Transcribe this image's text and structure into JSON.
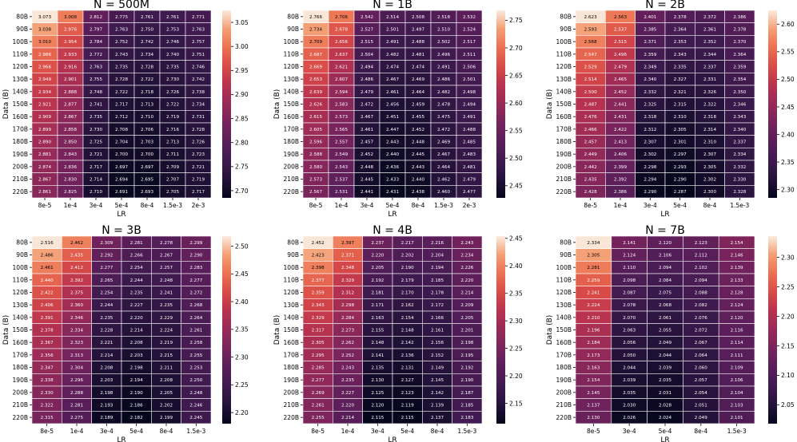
{
  "chart_data": [
    {
      "type": "heatmap",
      "title": "N = 500M",
      "xlabel": "LR",
      "ylabel": "Data (B)",
      "x_categories": [
        "8e-5",
        "1e-4",
        "3e-4",
        "5e-4",
        "8e-4",
        "1.5e-3",
        "2e-3"
      ],
      "y_categories": [
        "80B",
        "90B",
        "100B",
        "110B",
        "120B",
        "130B",
        "140B",
        "150B",
        "160B",
        "170B",
        "180B",
        "190B",
        "200B",
        "210B",
        "220B"
      ],
      "values": [
        [
          3.073,
          3.008,
          2.812,
          2.775,
          2.761,
          2.761,
          2.771
        ],
        [
          3.038,
          2.976,
          2.797,
          2.763,
          2.75,
          2.753,
          2.763
        ],
        [
          3.01,
          2.954,
          2.784,
          2.752,
          2.742,
          2.746,
          2.757
        ],
        [
          2.986,
          2.933,
          2.772,
          2.743,
          2.734,
          2.74,
          2.751
        ],
        [
          2.966,
          2.916,
          2.763,
          2.735,
          2.728,
          2.735,
          2.746
        ],
        [
          2.949,
          2.901,
          2.755,
          2.728,
          2.722,
          2.73,
          2.742
        ],
        [
          2.934,
          2.888,
          2.748,
          2.722,
          2.718,
          2.726,
          2.738
        ],
        [
          2.921,
          2.877,
          2.741,
          2.717,
          2.713,
          2.722,
          2.734
        ],
        [
          2.909,
          2.867,
          2.735,
          2.712,
          2.71,
          2.719,
          2.731
        ],
        [
          2.899,
          2.858,
          2.73,
          2.708,
          2.706,
          2.716,
          2.728
        ],
        [
          2.89,
          2.85,
          2.725,
          2.704,
          2.703,
          2.713,
          2.726
        ],
        [
          2.881,
          2.843,
          2.721,
          2.7,
          2.7,
          2.711,
          2.723
        ],
        [
          2.874,
          2.836,
          2.717,
          2.697,
          2.697,
          2.709,
          2.721
        ],
        [
          2.867,
          2.83,
          2.714,
          2.694,
          2.695,
          2.707,
          2.719
        ],
        [
          2.861,
          2.825,
          2.71,
          2.691,
          2.693,
          2.705,
          2.717
        ]
      ],
      "colorbar": {
        "ticks": [
          "2.70",
          "2.75",
          "2.80",
          "2.85",
          "2.90",
          "2.95",
          "3.00",
          "3.05"
        ],
        "vmin": 2.685,
        "vmax": 3.075
      }
    },
    {
      "type": "heatmap",
      "title": "N = 1B",
      "xlabel": "LR",
      "ylabel": "Data (B)",
      "x_categories": [
        "8e-5",
        "1e-4",
        "3e-4",
        "5e-4",
        "8e-4",
        "1.5e-3",
        "2e-3"
      ],
      "y_categories": [
        "80B",
        "90B",
        "100B",
        "110B",
        "120B",
        "130B",
        "140B",
        "150B",
        "160B",
        "170B",
        "180B",
        "190B",
        "200B",
        "210B",
        "220B"
      ],
      "values": [
        [
          2.766,
          2.706,
          2.542,
          2.514,
          2.508,
          2.518,
          2.532
        ],
        [
          2.734,
          2.678,
          2.527,
          2.501,
          2.497,
          2.51,
          2.524
        ],
        [
          2.709,
          2.656,
          2.515,
          2.491,
          2.488,
          2.502,
          2.517
        ],
        [
          2.687,
          2.637,
          2.504,
          2.482,
          2.481,
          2.496,
          2.511
        ],
        [
          2.669,
          2.621,
          2.494,
          2.474,
          2.474,
          2.491,
          2.506
        ],
        [
          2.653,
          2.607,
          2.486,
          2.467,
          2.469,
          2.486,
          2.501
        ],
        [
          2.639,
          2.594,
          2.479,
          2.461,
          2.464,
          2.482,
          2.498
        ],
        [
          2.626,
          2.583,
          2.472,
          2.456,
          2.459,
          2.478,
          2.494
        ],
        [
          2.615,
          2.573,
          2.467,
          2.451,
          2.455,
          2.475,
          2.491
        ],
        [
          2.605,
          2.565,
          2.461,
          2.447,
          2.452,
          2.472,
          2.488
        ],
        [
          2.596,
          2.557,
          2.457,
          2.443,
          2.448,
          2.469,
          2.485
        ],
        [
          2.588,
          2.549,
          2.452,
          2.44,
          2.445,
          2.467,
          2.483
        ],
        [
          2.58,
          2.543,
          2.448,
          2.436,
          2.443,
          2.464,
          2.481
        ],
        [
          2.573,
          2.537,
          2.445,
          2.433,
          2.44,
          2.462,
          2.479
        ],
        [
          2.567,
          2.531,
          2.441,
          2.431,
          2.438,
          2.46,
          2.477
        ]
      ],
      "colorbar": {
        "ticks": [
          "2.45",
          "2.50",
          "2.55",
          "2.60",
          "2.65",
          "2.70",
          "2.75"
        ],
        "vmin": 2.428,
        "vmax": 2.768
      }
    },
    {
      "type": "heatmap",
      "title": "N = 2B",
      "xlabel": "LR",
      "ylabel": "Data (B)",
      "x_categories": [
        "8e-5",
        "1e-4",
        "3e-4",
        "5e-4",
        "8e-4",
        "1.5e-3"
      ],
      "y_categories": [
        "80B",
        "90B",
        "100B",
        "110B",
        "120B",
        "130B",
        "140B",
        "150B",
        "160B",
        "170B",
        "180B",
        "190B",
        "200B",
        "210B",
        "220B"
      ],
      "values": [
        [
          2.623,
          2.563,
          2.401,
          2.378,
          2.372,
          2.386
        ],
        [
          2.593,
          2.537,
          2.385,
          2.364,
          2.361,
          2.378
        ],
        [
          2.568,
          2.515,
          2.371,
          2.353,
          2.352,
          2.37
        ],
        [
          2.547,
          2.496,
          2.359,
          2.343,
          2.344,
          2.364
        ],
        [
          2.529,
          2.479,
          2.349,
          2.335,
          2.337,
          2.359
        ],
        [
          2.514,
          2.465,
          2.34,
          2.327,
          2.331,
          2.354
        ],
        [
          2.5,
          2.452,
          2.332,
          2.321,
          2.326,
          2.35
        ],
        [
          2.487,
          2.441,
          2.325,
          2.315,
          2.322,
          2.346
        ],
        [
          2.476,
          2.431,
          2.318,
          2.31,
          2.318,
          2.343
        ],
        [
          2.466,
          2.422,
          2.312,
          2.305,
          2.314,
          2.34
        ],
        [
          2.457,
          2.413,
          2.307,
          2.301,
          2.31,
          2.337
        ],
        [
          2.449,
          2.406,
          2.302,
          2.297,
          2.307,
          2.334
        ],
        [
          2.442,
          2.399,
          2.298,
          2.293,
          2.305,
          2.332
        ],
        [
          2.435,
          2.392,
          2.294,
          2.29,
          2.302,
          2.33
        ],
        [
          2.428,
          2.386,
          2.29,
          2.287,
          2.3,
          2.328
        ]
      ],
      "colorbar": {
        "ticks": [
          "2.30",
          "2.35",
          "2.40",
          "2.45",
          "2.50",
          "2.55",
          "2.60"
        ],
        "vmin": 2.285,
        "vmax": 2.625
      }
    },
    {
      "type": "heatmap",
      "title": "N = 3B",
      "xlabel": "LR",
      "ylabel": "Data (B)",
      "x_categories": [
        "8e-5",
        "1e-4",
        "3e-4",
        "5e-4",
        "8e-4",
        "1.5e-3"
      ],
      "y_categories": [
        "80B",
        "90B",
        "100B",
        "110B",
        "120B",
        "130B",
        "140B",
        "150B",
        "160B",
        "170B",
        "180B",
        "190B",
        "200B",
        "210B",
        "220B"
      ],
      "values": [
        [
          2.516,
          2.462,
          2.309,
          2.281,
          2.278,
          2.299
        ],
        [
          2.486,
          2.435,
          2.292,
          2.266,
          2.267,
          2.29
        ],
        [
          2.461,
          2.412,
          2.277,
          2.254,
          2.257,
          2.283
        ],
        [
          2.44,
          2.392,
          2.265,
          2.244,
          2.248,
          2.277
        ],
        [
          2.422,
          2.375,
          2.254,
          2.235,
          2.241,
          2.272
        ],
        [
          2.406,
          2.36,
          2.244,
          2.227,
          2.235,
          2.268
        ],
        [
          2.391,
          2.346,
          2.235,
          2.22,
          2.229,
          2.264
        ],
        [
          2.378,
          2.334,
          2.228,
          2.214,
          2.224,
          2.261
        ],
        [
          2.367,
          2.323,
          2.221,
          2.208,
          2.219,
          2.258
        ],
        [
          2.356,
          2.313,
          2.214,
          2.203,
          2.215,
          2.255
        ],
        [
          2.347,
          2.304,
          2.208,
          2.198,
          2.211,
          2.253
        ],
        [
          2.338,
          2.296,
          2.203,
          2.194,
          2.208,
          2.25
        ],
        [
          2.33,
          2.288,
          2.198,
          2.19,
          2.205,
          2.248
        ],
        [
          2.322,
          2.281,
          2.193,
          2.186,
          2.202,
          2.246
        ],
        [
          2.315,
          2.275,
          2.189,
          2.182,
          2.199,
          2.245
        ]
      ],
      "colorbar": {
        "ticks": [
          "2.20",
          "2.25",
          "2.30",
          "2.35",
          "2.40",
          "2.45",
          "2.50"
        ],
        "vmin": 2.18,
        "vmax": 2.518
      }
    },
    {
      "type": "heatmap",
      "title": "N = 4B",
      "xlabel": "LR",
      "ylabel": "Data (B)",
      "x_categories": [
        "8e-5",
        "1e-4",
        "3e-4",
        "5e-4",
        "8e-4",
        "1.5e-3"
      ],
      "y_categories": [
        "80B",
        "90B",
        "100B",
        "110B",
        "120B",
        "130B",
        "140B",
        "150B",
        "160B",
        "170B",
        "180B",
        "190B",
        "200B",
        "210B",
        "220B"
      ],
      "values": [
        [
          2.452,
          2.397,
          2.237,
          2.217,
          2.216,
          2.243
        ],
        [
          2.423,
          2.371,
          2.22,
          2.202,
          2.204,
          2.234
        ],
        [
          2.398,
          2.348,
          2.205,
          2.19,
          2.194,
          2.226
        ],
        [
          2.377,
          2.329,
          2.192,
          2.179,
          2.185,
          2.22
        ],
        [
          2.359,
          2.312,
          2.181,
          2.17,
          2.178,
          2.214
        ],
        [
          2.343,
          2.298,
          2.171,
          2.162,
          2.172,
          2.209
        ],
        [
          2.329,
          2.284,
          2.163,
          2.154,
          2.166,
          2.205
        ],
        [
          2.317,
          2.273,
          2.155,
          2.148,
          2.161,
          2.201
        ],
        [
          2.305,
          2.262,
          2.148,
          2.142,
          2.156,
          2.198
        ],
        [
          2.295,
          2.252,
          2.141,
          2.136,
          2.152,
          2.195
        ],
        [
          2.285,
          2.243,
          2.135,
          2.131,
          2.149,
          2.192
        ],
        [
          2.277,
          2.235,
          2.13,
          2.127,
          2.145,
          2.19
        ],
        [
          2.269,
          2.227,
          2.125,
          2.123,
          2.142,
          2.187
        ],
        [
          2.261,
          2.22,
          2.12,
          2.119,
          2.139,
          2.185
        ],
        [
          2.255,
          2.214,
          2.115,
          2.115,
          2.137,
          2.183
        ]
      ],
      "colorbar": {
        "ticks": [
          "2.15",
          "2.20",
          "2.25",
          "2.30",
          "2.35",
          "2.40",
          "2.45"
        ],
        "vmin": 2.113,
        "vmax": 2.454
      }
    },
    {
      "type": "heatmap",
      "title": "N = 7B",
      "xlabel": "LR",
      "ylabel": "Data (B)",
      "x_categories": [
        "8e-5",
        "3e-4",
        "5e-4",
        "8e-4",
        "1.5e-3"
      ],
      "y_categories": [
        "80B",
        "90B",
        "100B",
        "110B",
        "120B",
        "130B",
        "140B",
        "150B",
        "160B",
        "170B",
        "180B",
        "190B",
        "200B",
        "210B",
        "220B"
      ],
      "values": [
        [
          2.334,
          2.141,
          2.12,
          2.123,
          2.154
        ],
        [
          2.305,
          2.124,
          2.106,
          2.112,
          2.146
        ],
        [
          2.281,
          2.11,
          2.094,
          2.102,
          2.139
        ],
        [
          2.259,
          2.098,
          2.084,
          2.094,
          2.133
        ],
        [
          2.241,
          2.087,
          2.075,
          2.088,
          2.128
        ],
        [
          2.224,
          2.078,
          2.068,
          2.082,
          2.124
        ],
        [
          2.21,
          2.07,
          2.061,
          2.076,
          2.12
        ],
        [
          2.196,
          2.063,
          2.055,
          2.072,
          2.116
        ],
        [
          2.184,
          2.056,
          2.049,
          2.067,
          2.114
        ],
        [
          2.173,
          2.05,
          2.044,
          2.064,
          2.111
        ],
        [
          2.163,
          2.044,
          2.039,
          2.06,
          2.109
        ],
        [
          2.154,
          2.039,
          2.035,
          2.057,
          2.106
        ],
        [
          2.145,
          2.035,
          2.031,
          2.054,
          2.104
        ],
        [
          2.137,
          2.03,
          2.028,
          2.051,
          2.103
        ],
        [
          2.13,
          2.026,
          2.024,
          2.049,
          2.101
        ]
      ],
      "colorbar": {
        "ticks": [
          "2.05",
          "2.10",
          "2.15",
          "2.20",
          "2.25",
          "2.30"
        ],
        "vmin": 2.018,
        "vmax": 2.336
      }
    }
  ]
}
